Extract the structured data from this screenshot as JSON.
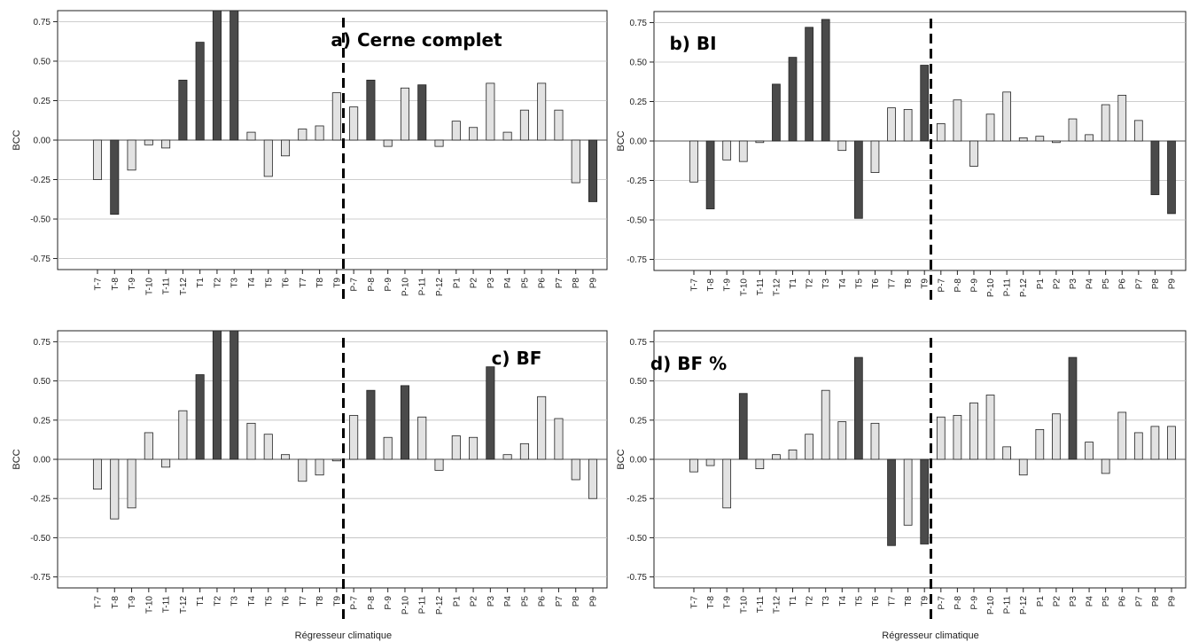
{
  "figure": {
    "colors": {
      "dark": "#4a4a4a",
      "light": "#e2e2e2",
      "stroke": "#222222",
      "grid": "#bdbdbd",
      "divider": "#000000"
    }
  },
  "chart_data": [
    {
      "type": "bar",
      "title": "a) Cerne complet",
      "ylabel": "BCC",
      "xlabel": "",
      "ylim": [
        -0.82,
        0.82
      ],
      "yticks": [
        "0.75",
        "0.50",
        "0.25",
        "0.00",
        "-0.25",
        "-0.50",
        "-0.75"
      ],
      "categories": [
        "T-7",
        "T-8",
        "T-9",
        "T-10",
        "T-11",
        "T-12",
        "T1",
        "T2",
        "T3",
        "T4",
        "T5",
        "T6",
        "T7",
        "T8",
        "T9",
        "P-7",
        "P-8",
        "P-9",
        "P-10",
        "P-11",
        "P-12",
        "P1",
        "P2",
        "P3",
        "P4",
        "P5",
        "P6",
        "P7",
        "P8",
        "P9"
      ],
      "values": [
        -0.25,
        -0.47,
        -0.19,
        -0.03,
        -0.05,
        0.38,
        0.62,
        0.82,
        0.82,
        0.05,
        -0.23,
        -0.1,
        0.07,
        0.09,
        0.3,
        0.21,
        0.38,
        -0.04,
        0.33,
        0.35,
        -0.04,
        0.12,
        0.08,
        0.36,
        0.05,
        0.19,
        0.36,
        0.19,
        -0.27,
        -0.39
      ],
      "significant": [
        false,
        true,
        false,
        false,
        false,
        true,
        true,
        true,
        true,
        false,
        false,
        false,
        false,
        false,
        false,
        false,
        true,
        false,
        false,
        true,
        false,
        false,
        false,
        false,
        false,
        false,
        false,
        false,
        false,
        true
      ],
      "divider_after": "T9",
      "grid": true
    },
    {
      "type": "bar",
      "title": "b) BI",
      "ylabel": "BCC",
      "xlabel": "",
      "ylim": [
        -0.82,
        0.82
      ],
      "yticks": [
        "0.75",
        "0.50",
        "0.25",
        "0.00",
        "-0.25",
        "-0.50",
        "-0.75"
      ],
      "categories": [
        "T-7",
        "T-8",
        "T-9",
        "T-10",
        "T-11",
        "T-12",
        "T1",
        "T2",
        "T3",
        "T4",
        "T5",
        "T6",
        "T7",
        "T8",
        "T9",
        "P-7",
        "P-8",
        "P-9",
        "P-10",
        "P-11",
        "P-12",
        "P1",
        "P2",
        "P3",
        "P4",
        "P5",
        "P6",
        "P7",
        "P8",
        "P9"
      ],
      "values": [
        -0.26,
        -0.43,
        -0.12,
        -0.13,
        -0.01,
        0.36,
        0.53,
        0.72,
        0.77,
        -0.06,
        -0.49,
        -0.2,
        0.21,
        0.2,
        0.48,
        0.11,
        0.26,
        -0.16,
        0.17,
        0.31,
        0.02,
        0.03,
        -0.01,
        0.14,
        0.04,
        0.23,
        0.29,
        0.13,
        -0.34,
        -0.46
      ],
      "significant": [
        false,
        true,
        false,
        false,
        false,
        true,
        true,
        true,
        true,
        false,
        true,
        false,
        false,
        false,
        true,
        false,
        false,
        false,
        false,
        false,
        false,
        false,
        false,
        false,
        false,
        false,
        false,
        false,
        true,
        true
      ],
      "divider_after": "T9",
      "grid": true
    },
    {
      "type": "bar",
      "title": "c) BF",
      "ylabel": "BCC",
      "xlabel": "Régresseur climatique",
      "ylim": [
        -0.82,
        0.82
      ],
      "yticks": [
        "0.75",
        "0.50",
        "0.25",
        "0.00",
        "-0.25",
        "-0.50",
        "-0.75"
      ],
      "categories": [
        "T-7",
        "T-8",
        "T-9",
        "T-10",
        "T-11",
        "T-12",
        "T1",
        "T2",
        "T3",
        "T4",
        "T5",
        "T6",
        "T7",
        "T8",
        "T9",
        "P-7",
        "P-8",
        "P-9",
        "P-10",
        "P-11",
        "P-12",
        "P1",
        "P2",
        "P3",
        "P4",
        "P5",
        "P6",
        "P7",
        "P8",
        "P9"
      ],
      "values": [
        -0.19,
        -0.38,
        -0.31,
        0.17,
        -0.05,
        0.31,
        0.54,
        0.82,
        0.82,
        0.23,
        0.16,
        0.03,
        -0.14,
        -0.1,
        -0.01,
        0.28,
        0.44,
        0.14,
        0.47,
        0.27,
        -0.07,
        0.15,
        0.14,
        0.59,
        0.03,
        0.1,
        0.4,
        0.26,
        -0.13,
        -0.25
      ],
      "significant": [
        false,
        false,
        false,
        false,
        false,
        false,
        true,
        true,
        true,
        false,
        false,
        false,
        false,
        false,
        false,
        false,
        true,
        false,
        true,
        false,
        false,
        false,
        false,
        true,
        false,
        false,
        false,
        false,
        false,
        false
      ],
      "divider_after": "T9",
      "grid": true
    },
    {
      "type": "bar",
      "title": "d) BF %",
      "ylabel": "BCC",
      "xlabel": "Régresseur climatique",
      "ylim": [
        -0.82,
        0.82
      ],
      "yticks": [
        "0.75",
        "0.50",
        "0.25",
        "0.00",
        "-0.25",
        "-0.50",
        "-0.75"
      ],
      "categories": [
        "T-7",
        "T-8",
        "T-9",
        "T-10",
        "T-11",
        "T-12",
        "T1",
        "T2",
        "T3",
        "T4",
        "T5",
        "T6",
        "T7",
        "T8",
        "T9",
        "P-7",
        "P-8",
        "P-9",
        "P-10",
        "P-11",
        "P-12",
        "P1",
        "P2",
        "P3",
        "P4",
        "P5",
        "P6",
        "P7",
        "P8",
        "P9"
      ],
      "values": [
        -0.08,
        -0.04,
        -0.31,
        0.42,
        -0.06,
        0.03,
        0.06,
        0.16,
        0.44,
        0.24,
        0.65,
        0.23,
        -0.55,
        -0.42,
        -0.54,
        0.27,
        0.28,
        0.36,
        0.41,
        0.08,
        -0.1,
        0.19,
        0.29,
        0.65,
        0.11,
        -0.09,
        0.3,
        0.17,
        0.21,
        0.21
      ],
      "significant": [
        false,
        false,
        false,
        true,
        false,
        false,
        false,
        false,
        false,
        false,
        true,
        false,
        true,
        false,
        true,
        false,
        false,
        false,
        false,
        false,
        false,
        false,
        false,
        true,
        false,
        false,
        false,
        false,
        false,
        false
      ],
      "divider_after": "T9",
      "grid": true
    }
  ]
}
